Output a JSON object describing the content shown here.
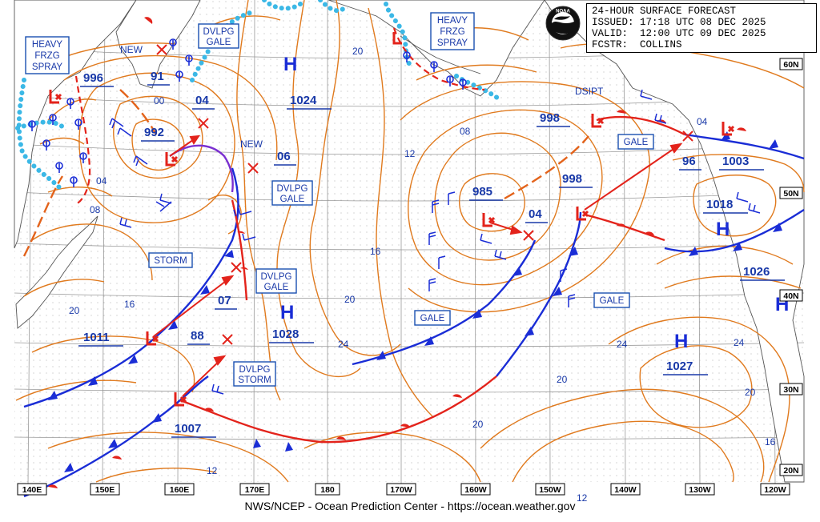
{
  "header": {
    "line1": "24-HOUR SURFACE FORECAST",
    "line2": "ISSUED: 17:18 UTC 08 DEC 2025",
    "line3": "VALID:  12:00 UTC 09 DEC 2025",
    "line4": "FCSTR:  COLLINS"
  },
  "footer": "NWS/NCEP - Ocean Prediction Center - https://ocean.weather.gov",
  "logo_text": "NOAA",
  "lon_labels": [
    "140E",
    "150E",
    "160E",
    "170E",
    "180",
    "170W",
    "160W",
    "150W",
    "140W",
    "130W",
    "120W"
  ],
  "lat_labels": [
    "60N",
    "50N",
    "40N",
    "30N",
    "20N"
  ],
  "pressure_centers": [
    {
      "type": "H",
      "value": "1024"
    },
    {
      "type": "H",
      "value": "1028"
    },
    {
      "type": "H",
      "value": "1018"
    },
    {
      "type": "H",
      "value": "1027"
    },
    {
      "type": "H",
      "value": ""
    },
    {
      "type": "H",
      "value": "1026"
    },
    {
      "type": "L",
      "value": "992"
    },
    {
      "type": "L",
      "value": "985"
    },
    {
      "type": "L",
      "value": "998"
    },
    {
      "type": "L",
      "value": "998"
    },
    {
      "type": "L",
      "value": "1011"
    },
    {
      "type": "L",
      "value": "1007"
    },
    {
      "type": "L",
      "value": "1003"
    },
    {
      "type": "L",
      "value": "996"
    }
  ],
  "forecast_labels": [
    "91",
    "04",
    "06",
    "04",
    "96",
    "07",
    "88",
    "00"
  ],
  "warnings": {
    "heavy_frzg_spray_w": [
      "HEAVY",
      "FRZG",
      "SPRAY"
    ],
    "heavy_frzg_spray_e": [
      "HEAVY",
      "FRZG",
      "SPRAY"
    ],
    "dvlpg_gale_nw": [
      "DVLPG",
      "GALE"
    ],
    "dvlpg_gale_mid": [
      "DVLPG",
      "GALE"
    ],
    "dvlpg_gale_s": [
      "DVLPG",
      "GALE"
    ],
    "dvlpg_storm": [
      "DVLPG",
      "STORM"
    ],
    "storm": "STORM",
    "gale_c": "GALE",
    "gale_ne": "GALE",
    "gale_e": "GALE"
  },
  "annotations": {
    "new_1": "NEW",
    "new_2": "NEW",
    "dsipt": "DSIPT"
  },
  "isobar_labels": [
    "20",
    "24",
    "12",
    "08",
    "04",
    "16",
    "20",
    "16",
    "20",
    "24",
    "20",
    "24",
    "20",
    "16",
    "12",
    "12",
    "20",
    "16",
    "08",
    "04",
    "24"
  ],
  "colors": {
    "isobar": "#e07a1e",
    "cold_front": "#1a2dd6",
    "warm_front": "#e3231b",
    "ice": "#3bb8e6",
    "label_box": "#1a4fb0",
    "text_blue": "#1838a8"
  }
}
